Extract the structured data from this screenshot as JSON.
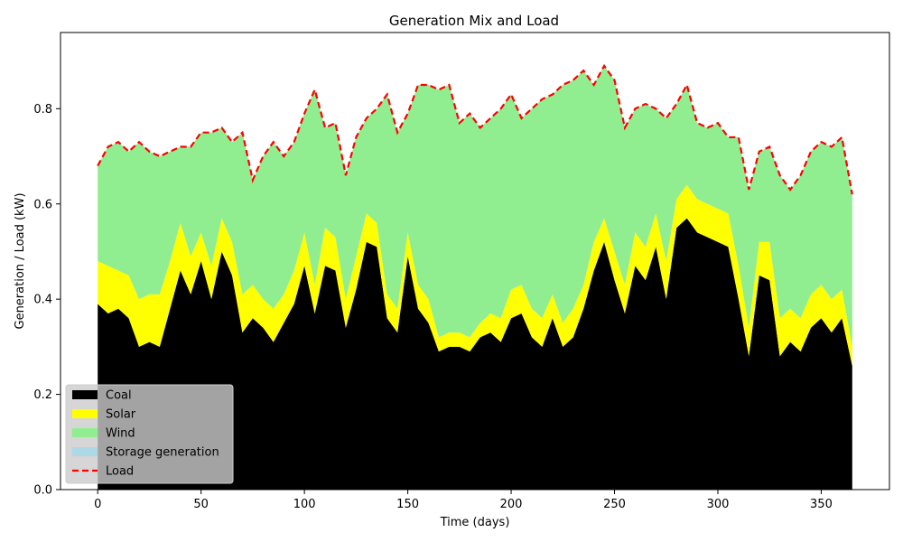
{
  "chart_data": {
    "type": "area",
    "title": "Generation Mix and Load",
    "xlabel": "Time (days)",
    "ylabel": "Generation / Load (kW)",
    "xlim": [
      -18,
      383
    ],
    "ylim": [
      0,
      0.96
    ],
    "xticks": [
      0,
      50,
      100,
      150,
      200,
      250,
      300,
      350
    ],
    "yticks": [
      0.0,
      0.2,
      0.4,
      0.6,
      0.8
    ],
    "ytick_labels": [
      "0.0",
      "0.2",
      "0.4",
      "0.6",
      "0.8"
    ],
    "grid": false,
    "legend_position": "lower-left",
    "x": [
      0,
      5,
      10,
      15,
      20,
      25,
      30,
      35,
      40,
      45,
      50,
      55,
      60,
      65,
      70,
      75,
      80,
      85,
      90,
      95,
      100,
      105,
      110,
      115,
      120,
      125,
      130,
      135,
      140,
      145,
      150,
      155,
      160,
      165,
      170,
      175,
      180,
      185,
      190,
      195,
      200,
      205,
      210,
      215,
      220,
      225,
      230,
      235,
      240,
      245,
      250,
      255,
      260,
      265,
      270,
      275,
      280,
      285,
      290,
      295,
      300,
      305,
      310,
      315,
      320,
      325,
      330,
      335,
      340,
      345,
      350,
      355,
      360,
      365
    ],
    "series": [
      {
        "name": "Coal",
        "kind": "area",
        "color": "#000000",
        "values": [
          0.39,
          0.37,
          0.38,
          0.36,
          0.3,
          0.31,
          0.3,
          0.38,
          0.46,
          0.41,
          0.48,
          0.4,
          0.5,
          0.45,
          0.33,
          0.36,
          0.34,
          0.31,
          0.35,
          0.39,
          0.47,
          0.37,
          0.47,
          0.46,
          0.34,
          0.42,
          0.52,
          0.51,
          0.36,
          0.33,
          0.49,
          0.38,
          0.35,
          0.29,
          0.3,
          0.3,
          0.29,
          0.32,
          0.33,
          0.31,
          0.36,
          0.37,
          0.32,
          0.3,
          0.36,
          0.3,
          0.32,
          0.38,
          0.46,
          0.52,
          0.44,
          0.37,
          0.47,
          0.44,
          0.51,
          0.4,
          0.55,
          0.57,
          0.54,
          0.53,
          0.52,
          0.51,
          0.4,
          0.28,
          0.45,
          0.44,
          0.28,
          0.31,
          0.29,
          0.34,
          0.36,
          0.33,
          0.36,
          0.26
        ]
      },
      {
        "name": "Solar",
        "kind": "area",
        "color": "#ffff00",
        "values": [
          0.09,
          0.1,
          0.08,
          0.09,
          0.1,
          0.1,
          0.11,
          0.1,
          0.1,
          0.08,
          0.06,
          0.07,
          0.07,
          0.07,
          0.08,
          0.07,
          0.06,
          0.07,
          0.06,
          0.07,
          0.07,
          0.06,
          0.08,
          0.07,
          0.06,
          0.07,
          0.06,
          0.05,
          0.05,
          0.05,
          0.05,
          0.05,
          0.05,
          0.03,
          0.03,
          0.03,
          0.03,
          0.03,
          0.04,
          0.05,
          0.06,
          0.06,
          0.06,
          0.06,
          0.05,
          0.05,
          0.06,
          0.05,
          0.06,
          0.05,
          0.06,
          0.06,
          0.07,
          0.07,
          0.07,
          0.08,
          0.06,
          0.07,
          0.07,
          0.07,
          0.07,
          0.07,
          0.07,
          0.06,
          0.07,
          0.08,
          0.08,
          0.07,
          0.07,
          0.07,
          0.07,
          0.07,
          0.06,
          0.04
        ]
      },
      {
        "name": "Wind",
        "kind": "area",
        "color": "#90ee90",
        "values": [
          0.2,
          0.25,
          0.27,
          0.26,
          0.33,
          0.3,
          0.29,
          0.23,
          0.16,
          0.23,
          0.21,
          0.28,
          0.19,
          0.21,
          0.34,
          0.22,
          0.3,
          0.35,
          0.29,
          0.27,
          0.25,
          0.41,
          0.21,
          0.24,
          0.26,
          0.25,
          0.2,
          0.24,
          0.42,
          0.37,
          0.25,
          0.42,
          0.45,
          0.52,
          0.52,
          0.44,
          0.47,
          0.41,
          0.41,
          0.44,
          0.41,
          0.35,
          0.42,
          0.46,
          0.42,
          0.5,
          0.48,
          0.45,
          0.33,
          0.32,
          0.36,
          0.33,
          0.26,
          0.3,
          0.22,
          0.3,
          0.2,
          0.21,
          0.16,
          0.16,
          0.18,
          0.16,
          0.27,
          0.29,
          0.19,
          0.2,
          0.3,
          0.25,
          0.3,
          0.3,
          0.3,
          0.32,
          0.32,
          0.32
        ]
      },
      {
        "name": "Storage generation",
        "kind": "area",
        "color": "#add8e6",
        "values": [
          0,
          0,
          0,
          0,
          0,
          0,
          0,
          0,
          0,
          0,
          0,
          0,
          0,
          0,
          0,
          0,
          0,
          0,
          0,
          0,
          0,
          0,
          0,
          0,
          0,
          0,
          0,
          0,
          0,
          0,
          0,
          0,
          0,
          0,
          0,
          0,
          0,
          0,
          0,
          0,
          0,
          0,
          0,
          0,
          0,
          0,
          0,
          0,
          0,
          0,
          0,
          0,
          0,
          0,
          0,
          0,
          0,
          0,
          0,
          0,
          0,
          0,
          0,
          0,
          0,
          0,
          0,
          0,
          0,
          0,
          0,
          0,
          0,
          0
        ]
      },
      {
        "name": "Load",
        "kind": "line",
        "color": "#ff0000",
        "values": [
          0.68,
          0.72,
          0.73,
          0.71,
          0.73,
          0.71,
          0.7,
          0.71,
          0.72,
          0.72,
          0.75,
          0.75,
          0.76,
          0.73,
          0.75,
          0.65,
          0.7,
          0.73,
          0.7,
          0.73,
          0.79,
          0.84,
          0.76,
          0.77,
          0.66,
          0.74,
          0.78,
          0.8,
          0.83,
          0.75,
          0.79,
          0.85,
          0.85,
          0.84,
          0.85,
          0.77,
          0.79,
          0.76,
          0.78,
          0.8,
          0.83,
          0.78,
          0.8,
          0.82,
          0.83,
          0.85,
          0.86,
          0.88,
          0.85,
          0.89,
          0.86,
          0.76,
          0.8,
          0.81,
          0.8,
          0.78,
          0.81,
          0.85,
          0.77,
          0.76,
          0.77,
          0.74,
          0.74,
          0.63,
          0.71,
          0.72,
          0.66,
          0.63,
          0.66,
          0.71,
          0.73,
          0.72,
          0.74,
          0.62
        ]
      }
    ],
    "legend": [
      {
        "label": "Coal",
        "color": "#000000",
        "kind": "patch"
      },
      {
        "label": "Solar",
        "color": "#ffff00",
        "kind": "patch"
      },
      {
        "label": "Wind",
        "color": "#90ee90",
        "kind": "patch"
      },
      {
        "label": "Storage generation",
        "color": "#add8e6",
        "kind": "patch"
      },
      {
        "label": "Load",
        "color": "#ff0000",
        "kind": "dashed-line"
      }
    ]
  }
}
